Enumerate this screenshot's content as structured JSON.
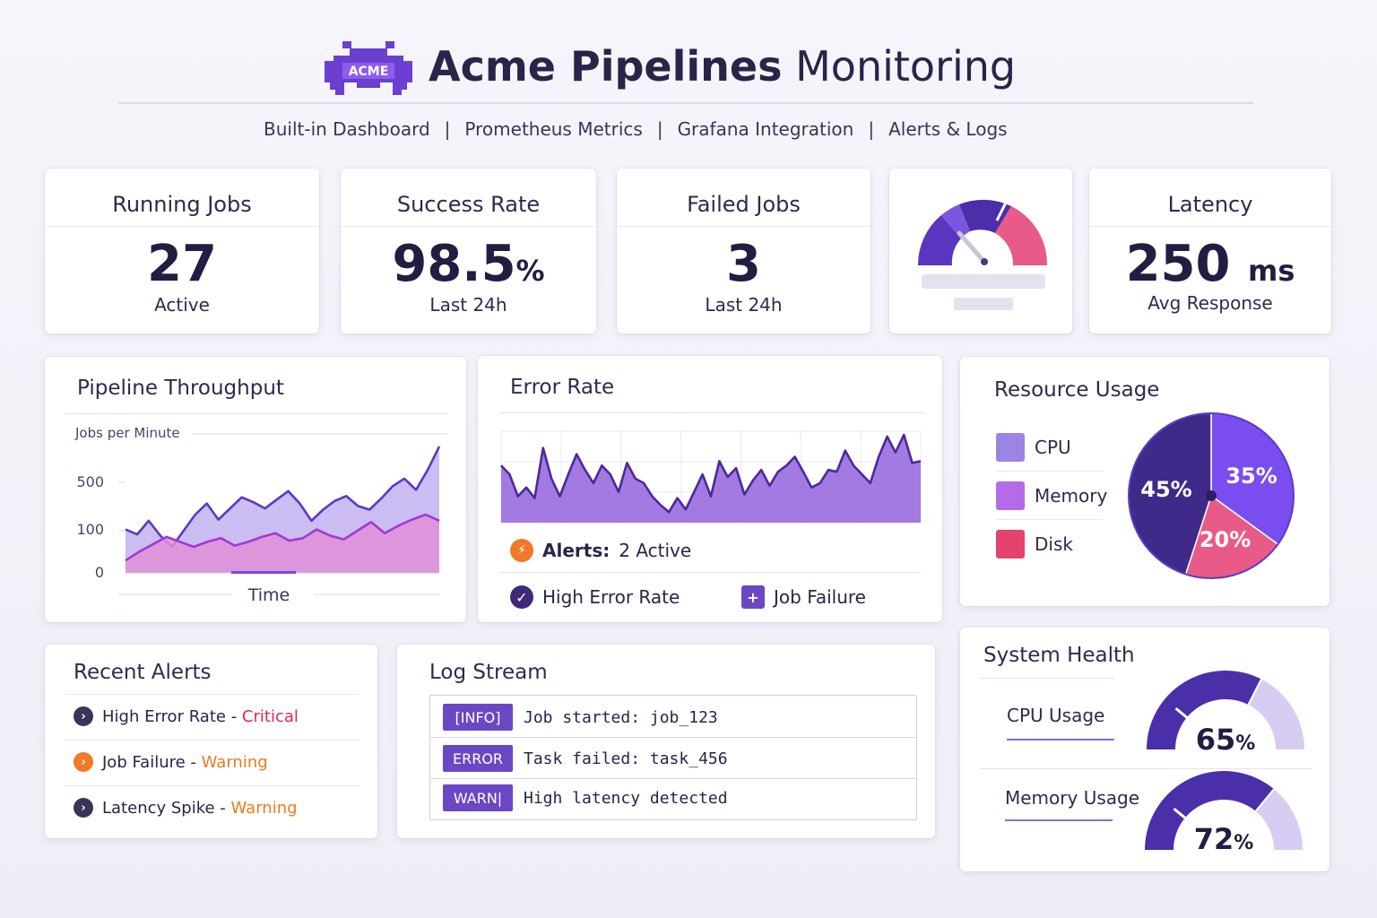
{
  "header": {
    "logo_text": "ACME",
    "title_bold": "Acme Pipelines",
    "title_light": "Monitoring",
    "nav": [
      "Built-in Dashboard",
      "Prometheus Metrics",
      "Grafana Integration",
      "Alerts & Logs"
    ],
    "nav_separator": "|"
  },
  "kpis": {
    "running_jobs": {
      "title": "Running Jobs",
      "value": "27",
      "sub": "Active"
    },
    "success_rate": {
      "title": "Success Rate",
      "value": "98.5",
      "unit": "%",
      "sub": "Last 24h"
    },
    "failed_jobs": {
      "title": "Failed Jobs",
      "value": "3",
      "sub": "Last 24h"
    },
    "latency": {
      "title": "Latency",
      "value": "250",
      "unit": "ms",
      "sub": "Avg Response"
    }
  },
  "colors": {
    "accent": "#6b47c4",
    "dark_purple": "#3f2a8a",
    "lavender": "#d9ccf2",
    "cpu": "#9b84e6",
    "memory": "#b56be8",
    "disk": "#e4436d",
    "pink": "#e85a88",
    "orange": "#f07a2a",
    "critical": "#e0245e",
    "warning": "#f07a1a"
  },
  "throughput": {
    "title": "Pipeline Throughput",
    "ylabel": "Jobs per Minute",
    "xlabel": "Time",
    "chart_data": {
      "type": "area",
      "y_ticks": [
        "500",
        "100",
        "0"
      ],
      "series": [
        {
          "values": [
            350,
            310,
            420,
            300,
            210,
            340,
            470,
            560,
            430,
            520,
            610,
            570,
            520,
            590,
            660,
            560,
            420,
            510,
            580,
            620,
            540,
            510,
            600,
            700,
            760,
            670,
            830,
            1020
          ]
        },
        {
          "values": [
            100,
            170,
            230,
            290,
            250,
            210,
            250,
            280,
            220,
            250,
            290,
            320,
            260,
            280,
            350,
            300,
            270,
            340,
            410,
            320,
            380,
            430,
            470,
            420
          ]
        }
      ]
    }
  },
  "error_rate": {
    "title": "Error Rate",
    "chart_data": {
      "type": "area",
      "values": [
        65,
        55,
        30,
        40,
        28,
        85,
        50,
        30,
        55,
        78,
        60,
        45,
        65,
        55,
        35,
        68,
        50,
        45,
        30,
        20,
        12,
        28,
        15,
        35,
        55,
        30,
        70,
        52,
        62,
        32,
        48,
        60,
        42,
        58,
        65,
        75,
        58,
        40,
        45,
        60,
        58,
        82,
        65,
        55,
        45,
        75,
        98,
        80,
        100,
        68,
        70
      ]
    },
    "alerts_label": "Alerts:",
    "alerts_value": "2 Active",
    "alert_items": [
      "High Error Rate",
      "Job Failure"
    ]
  },
  "resource": {
    "title": "Resource Usage",
    "legend": [
      "CPU",
      "Memory",
      "Disk"
    ],
    "chart_data": {
      "type": "pie",
      "slices": [
        {
          "label": "45%",
          "value": 45,
          "color": "#3f2a8a"
        },
        {
          "label": "35%",
          "value": 35,
          "color": "#7a4df0"
        },
        {
          "label": "20%",
          "value": 20,
          "color": "#e85a88"
        }
      ]
    }
  },
  "recent_alerts": {
    "title": "Recent Alerts",
    "items": [
      {
        "name": "High Error Rate",
        "sep": " - ",
        "level": "Critical"
      },
      {
        "name": "Job Failure",
        "sep": " - ",
        "level": "Warning"
      },
      {
        "name": "Latency Spike",
        "sep": " - ",
        "level": "Warning"
      }
    ]
  },
  "log_stream": {
    "title": "Log Stream",
    "rows": [
      {
        "tag": "[INFO]",
        "msg": "Job started: job_123"
      },
      {
        "tag": "ERROR",
        "msg": "Task failed: task_456"
      },
      {
        "tag": "WARN|",
        "msg": "High latency detected"
      }
    ]
  },
  "system_health": {
    "title": "System Health",
    "cpu": {
      "label": "CPU Usage",
      "value": "65",
      "unit": "%",
      "fraction": 0.65
    },
    "memory": {
      "label": "Memory Usage",
      "value": "72",
      "unit": "%",
      "fraction": 0.72
    }
  }
}
